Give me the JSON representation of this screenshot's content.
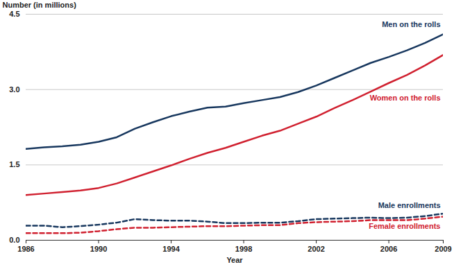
{
  "chart_data": {
    "type": "line",
    "x_label": "Year",
    "y_label": "Number (in millions)",
    "x": [
      1986,
      1987,
      1988,
      1989,
      1990,
      1991,
      1992,
      1993,
      1994,
      1995,
      1996,
      1997,
      1998,
      1999,
      2000,
      2001,
      2002,
      2003,
      2004,
      2005,
      2006,
      2007,
      2008,
      2009
    ],
    "series": [
      {
        "name": "Men on the rolls",
        "color": "#17375e",
        "line_style": "solid",
        "values": [
          1.82,
          1.85,
          1.87,
          1.9,
          1.96,
          2.05,
          2.22,
          2.35,
          2.47,
          2.56,
          2.64,
          2.66,
          2.73,
          2.79,
          2.85,
          2.95,
          3.08,
          3.23,
          3.38,
          3.53,
          3.65,
          3.78,
          3.93,
          4.1
        ]
      },
      {
        "name": "Women on the rolls",
        "color": "#d0202f",
        "line_style": "solid",
        "values": [
          0.9,
          0.93,
          0.96,
          0.99,
          1.04,
          1.13,
          1.25,
          1.37,
          1.49,
          1.62,
          1.74,
          1.84,
          1.96,
          2.08,
          2.18,
          2.32,
          2.46,
          2.63,
          2.79,
          2.96,
          3.13,
          3.29,
          3.48,
          3.69
        ]
      },
      {
        "name": "Male enrollments",
        "color": "#17375e",
        "line_style": "dashed",
        "values": [
          0.29,
          0.29,
          0.26,
          0.28,
          0.31,
          0.35,
          0.42,
          0.4,
          0.39,
          0.39,
          0.37,
          0.34,
          0.34,
          0.35,
          0.35,
          0.38,
          0.42,
          0.43,
          0.44,
          0.45,
          0.44,
          0.45,
          0.48,
          0.53
        ]
      },
      {
        "name": "Female enrollments",
        "color": "#d0202f",
        "line_style": "dashed",
        "values": [
          0.14,
          0.14,
          0.14,
          0.15,
          0.18,
          0.22,
          0.25,
          0.25,
          0.26,
          0.27,
          0.28,
          0.28,
          0.29,
          0.3,
          0.3,
          0.34,
          0.36,
          0.37,
          0.38,
          0.4,
          0.4,
          0.4,
          0.43,
          0.47
        ]
      }
    ],
    "xlim": [
      1986,
      2009
    ],
    "xticks": [
      1986,
      1990,
      1994,
      1998,
      2002,
      2006,
      2009
    ],
    "ylim": [
      0,
      4.5
    ],
    "yticks": [
      {
        "value": 0,
        "label": "0.0"
      },
      1.5,
      {
        "value": 3,
        "label": "3.0"
      },
      4.5
    ],
    "grid": true
  }
}
